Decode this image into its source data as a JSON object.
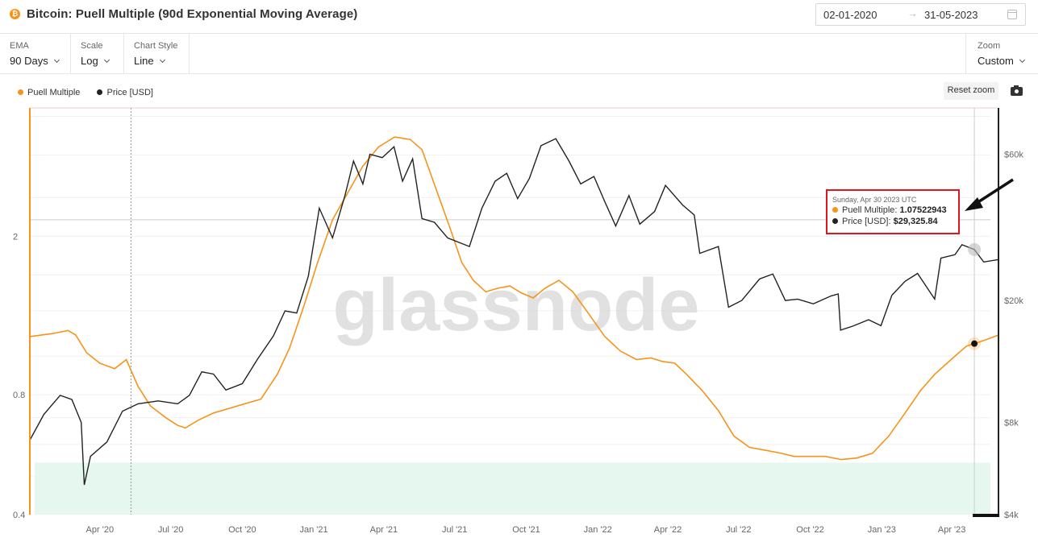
{
  "header": {
    "icon_glyph": "₿",
    "icon_color": "#f7931a",
    "title": "Bitcoin: Puell Multiple (90d Exponential Moving Average)",
    "date_start": "02-01-2020",
    "date_arrow": "→",
    "date_end": "31-05-2023",
    "calendar_icon": "calendar-icon"
  },
  "controls": {
    "ema": {
      "label": "EMA",
      "value": "90 Days"
    },
    "scale": {
      "label": "Scale",
      "value": "Log"
    },
    "chart_style": {
      "label": "Chart Style",
      "value": "Line"
    },
    "zoom": {
      "label": "Zoom",
      "value": "Custom"
    }
  },
  "legend": {
    "items": [
      {
        "label": "Puell Multiple",
        "color": "#f7931a"
      },
      {
        "label": "Price [USD]",
        "color": "#222222"
      }
    ]
  },
  "toolbar": {
    "reset_zoom": "Reset zoom",
    "camera_icon": "camera-icon"
  },
  "watermark": "glassnode",
  "tooltip": {
    "date": "Sunday, Apr 30 2023 UTC",
    "rows": [
      {
        "label": "Puell Multiple:",
        "value": "1.07522943",
        "color": "#f7931a"
      },
      {
        "label": "Price [USD]:",
        "value": "$29,325.84",
        "color": "#222222"
      }
    ]
  },
  "chart_data": {
    "type": "line",
    "x_ticks": [
      "Apr '20",
      "Jul '20",
      "Oct '20",
      "Jan '21",
      "Apr '21",
      "Jul '21",
      "Oct '21",
      "Jan '22",
      "Apr '22",
      "Jul '22",
      "Oct '22",
      "Jan '23",
      "Apr '23"
    ],
    "y_left": {
      "scale": "log",
      "ticks": [
        "0.4",
        "0.8",
        "2"
      ],
      "range": [
        0.4,
        4.2
      ]
    },
    "y_right": {
      "scale": "log",
      "ticks": [
        "$4k",
        "$8k",
        "$20k",
        "$60k"
      ],
      "range": [
        4000,
        85000
      ]
    },
    "shaded_band": {
      "axis": "left",
      "from": 0.4,
      "to": 0.54,
      "color": "#e5f7ef"
    },
    "series": [
      {
        "name": "Puell Multiple",
        "axis": "left",
        "color": "#f7931a",
        "points": [
          [
            "2020-01-02",
            1.12
          ],
          [
            "2020-02-01",
            1.14
          ],
          [
            "2020-02-20",
            1.16
          ],
          [
            "2020-03-01",
            1.13
          ],
          [
            "2020-03-15",
            1.02
          ],
          [
            "2020-04-01",
            0.96
          ],
          [
            "2020-04-20",
            0.93
          ],
          [
            "2020-05-05",
            0.98
          ],
          [
            "2020-05-20",
            0.84
          ],
          [
            "2020-06-05",
            0.75
          ],
          [
            "2020-06-25",
            0.7
          ],
          [
            "2020-07-10",
            0.67
          ],
          [
            "2020-07-20",
            0.66
          ],
          [
            "2020-08-05",
            0.69
          ],
          [
            "2020-08-25",
            0.72
          ],
          [
            "2020-09-15",
            0.74
          ],
          [
            "2020-10-05",
            0.76
          ],
          [
            "2020-10-25",
            0.78
          ],
          [
            "2020-11-15",
            0.9
          ],
          [
            "2020-12-01",
            1.05
          ],
          [
            "2020-12-20",
            1.35
          ],
          [
            "2021-01-05",
            1.7
          ],
          [
            "2021-01-25",
            2.2
          ],
          [
            "2021-02-15",
            2.6
          ],
          [
            "2021-03-05",
            3.0
          ],
          [
            "2021-03-25",
            3.35
          ],
          [
            "2021-04-15",
            3.55
          ],
          [
            "2021-05-05",
            3.5
          ],
          [
            "2021-05-20",
            3.3
          ],
          [
            "2021-06-05",
            2.7
          ],
          [
            "2021-06-25",
            2.1
          ],
          [
            "2021-07-10",
            1.72
          ],
          [
            "2021-07-25",
            1.55
          ],
          [
            "2021-08-10",
            1.45
          ],
          [
            "2021-08-25",
            1.48
          ],
          [
            "2021-09-10",
            1.5
          ],
          [
            "2021-09-25",
            1.44
          ],
          [
            "2021-10-10",
            1.4
          ],
          [
            "2021-10-25",
            1.48
          ],
          [
            "2021-11-12",
            1.55
          ],
          [
            "2021-11-30",
            1.45
          ],
          [
            "2021-12-20",
            1.28
          ],
          [
            "2022-01-10",
            1.12
          ],
          [
            "2022-01-30",
            1.03
          ],
          [
            "2022-02-20",
            0.98
          ],
          [
            "2022-03-10",
            0.99
          ],
          [
            "2022-03-25",
            0.97
          ],
          [
            "2022-04-10",
            0.96
          ],
          [
            "2022-04-25",
            0.9
          ],
          [
            "2022-05-15",
            0.82
          ],
          [
            "2022-06-05",
            0.73
          ],
          [
            "2022-06-25",
            0.63
          ],
          [
            "2022-07-15",
            0.59
          ],
          [
            "2022-08-05",
            0.58
          ],
          [
            "2022-08-25",
            0.57
          ],
          [
            "2022-09-10",
            0.56
          ],
          [
            "2022-09-30",
            0.56
          ],
          [
            "2022-10-20",
            0.56
          ],
          [
            "2022-11-10",
            0.55
          ],
          [
            "2022-11-30",
            0.555
          ],
          [
            "2022-12-20",
            0.57
          ],
          [
            "2023-01-10",
            0.63
          ],
          [
            "2023-01-31",
            0.72
          ],
          [
            "2023-02-20",
            0.82
          ],
          [
            "2023-03-10",
            0.9
          ],
          [
            "2023-03-31",
            0.98
          ],
          [
            "2023-04-20",
            1.06
          ],
          [
            "2023-04-30",
            1.075
          ],
          [
            "2023-05-15",
            1.1
          ],
          [
            "2023-05-31",
            1.13
          ]
        ]
      },
      {
        "name": "Price [USD]",
        "axis": "right",
        "color": "#222222",
        "points": [
          [
            "2020-01-02",
            7000
          ],
          [
            "2020-01-20",
            8500
          ],
          [
            "2020-02-10",
            9800
          ],
          [
            "2020-02-25",
            9500
          ],
          [
            "2020-03-08",
            8000
          ],
          [
            "2020-03-12",
            5000
          ],
          [
            "2020-03-20",
            6200
          ],
          [
            "2020-04-10",
            6900
          ],
          [
            "2020-04-30",
            8700
          ],
          [
            "2020-05-20",
            9200
          ],
          [
            "2020-06-15",
            9400
          ],
          [
            "2020-07-10",
            9200
          ],
          [
            "2020-07-25",
            9800
          ],
          [
            "2020-08-10",
            11700
          ],
          [
            "2020-08-25",
            11500
          ],
          [
            "2020-09-10",
            10200
          ],
          [
            "2020-10-01",
            10700
          ],
          [
            "2020-10-21",
            12900
          ],
          [
            "2020-11-10",
            15300
          ],
          [
            "2020-11-25",
            18500
          ],
          [
            "2020-12-10",
            18200
          ],
          [
            "2020-12-25",
            24000
          ],
          [
            "2021-01-08",
            40000
          ],
          [
            "2021-01-25",
            32000
          ],
          [
            "2021-02-10",
            44000
          ],
          [
            "2021-02-21",
            57000
          ],
          [
            "2021-03-05",
            48000
          ],
          [
            "2021-03-14",
            60000
          ],
          [
            "2021-03-30",
            58500
          ],
          [
            "2021-04-14",
            63500
          ],
          [
            "2021-04-25",
            49000
          ],
          [
            "2021-05-08",
            58000
          ],
          [
            "2021-05-20",
            37000
          ],
          [
            "2021-06-05",
            36000
          ],
          [
            "2021-06-22",
            32000
          ],
          [
            "2021-07-20",
            30000
          ],
          [
            "2021-08-05",
            40000
          ],
          [
            "2021-08-22",
            49000
          ],
          [
            "2021-09-06",
            52000
          ],
          [
            "2021-09-20",
            43000
          ],
          [
            "2021-10-05",
            50000
          ],
          [
            "2021-10-20",
            64000
          ],
          [
            "2021-11-08",
            67500
          ],
          [
            "2021-11-25",
            57000
          ],
          [
            "2021-12-10",
            48000
          ],
          [
            "2021-12-27",
            50800
          ],
          [
            "2022-01-10",
            42000
          ],
          [
            "2022-01-24",
            35000
          ],
          [
            "2022-02-10",
            44000
          ],
          [
            "2022-02-24",
            35500
          ],
          [
            "2022-03-15",
            39000
          ],
          [
            "2022-03-29",
            47500
          ],
          [
            "2022-04-20",
            41000
          ],
          [
            "2022-05-05",
            38000
          ],
          [
            "2022-05-12",
            28500
          ],
          [
            "2022-06-05",
            30000
          ],
          [
            "2022-06-18",
            19000
          ],
          [
            "2022-07-05",
            20000
          ],
          [
            "2022-07-28",
            23500
          ],
          [
            "2022-08-14",
            24400
          ],
          [
            "2022-08-30",
            20000
          ],
          [
            "2022-09-15",
            20200
          ],
          [
            "2022-10-05",
            19500
          ],
          [
            "2022-10-28",
            20700
          ],
          [
            "2022-11-06",
            21000
          ],
          [
            "2022-11-09",
            16000
          ],
          [
            "2022-11-25",
            16500
          ],
          [
            "2022-12-15",
            17300
          ],
          [
            "2022-12-31",
            16550
          ],
          [
            "2023-01-14",
            20800
          ],
          [
            "2023-01-31",
            23100
          ],
          [
            "2023-02-16",
            24500
          ],
          [
            "2023-03-10",
            20200
          ],
          [
            "2023-03-18",
            27500
          ],
          [
            "2023-04-05",
            28200
          ],
          [
            "2023-04-14",
            30400
          ],
          [
            "2023-04-30",
            29326
          ],
          [
            "2023-05-12",
            26700
          ],
          [
            "2023-05-31",
            27200
          ]
        ]
      }
    ]
  }
}
